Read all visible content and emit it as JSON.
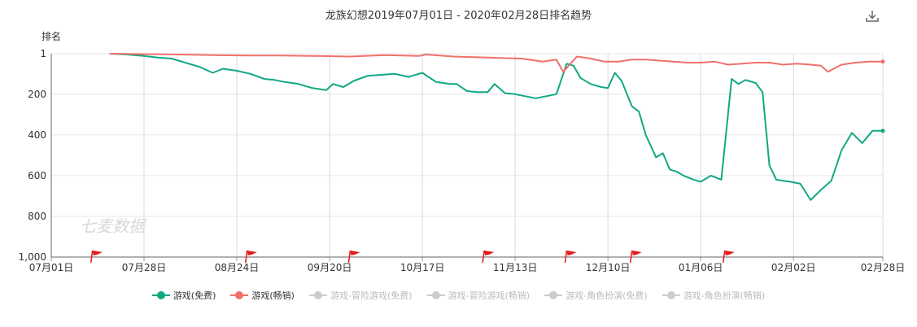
{
  "chart_data": {
    "type": "line",
    "title": "龙族幻想2019年07月01日 - 2020年02月28日排名趋势",
    "ylabel": "排名",
    "xlabel": "",
    "y_inverted": true,
    "ylim": [
      1,
      1000
    ],
    "yticks": [
      1,
      200,
      400,
      600,
      800,
      1000
    ],
    "ytick_labels": [
      "1",
      "200",
      "400",
      "600",
      "800",
      "1,000"
    ],
    "xlim": [
      "2019-07-01",
      "2020-02-28"
    ],
    "xticks": [
      "2019-07-01",
      "2019-07-28",
      "2019-08-24",
      "2019-09-20",
      "2019-10-17",
      "2019-11-13",
      "2019-12-10",
      "2020-01-06",
      "2020-02-02",
      "2020-02-28"
    ],
    "xtick_labels": [
      "07月01日",
      "07月28日",
      "08月24日",
      "09月20日",
      "10月17日",
      "11月13日",
      "12月10日",
      "01月06日",
      "02月02日",
      "02月28日"
    ],
    "grid": "vertical",
    "legend_position": "bottom",
    "event_flag_dates": [
      "2019-07-13",
      "2019-08-27",
      "2019-09-26",
      "2019-11-04",
      "2019-11-28",
      "2019-12-17",
      "2020-01-13"
    ],
    "series": [
      {
        "name": "游戏(免费)",
        "color": "#12a884",
        "visible": true,
        "x": [
          "2019-07-18",
          "2019-07-23",
          "2019-07-28",
          "2019-08-01",
          "2019-08-05",
          "2019-08-09",
          "2019-08-13",
          "2019-08-17",
          "2019-08-20",
          "2019-08-24",
          "2019-08-28",
          "2019-09-01",
          "2019-09-04",
          "2019-09-07",
          "2019-09-11",
          "2019-09-15",
          "2019-09-19",
          "2019-09-21",
          "2019-09-24",
          "2019-09-27",
          "2019-10-01",
          "2019-10-05",
          "2019-10-09",
          "2019-10-13",
          "2019-10-17",
          "2019-10-21",
          "2019-10-25",
          "2019-10-27",
          "2019-10-30",
          "2019-11-02",
          "2019-11-05",
          "2019-11-07",
          "2019-11-10",
          "2019-11-13",
          "2019-11-16",
          "2019-11-19",
          "2019-11-22",
          "2019-11-25",
          "2019-11-28",
          "2019-11-30",
          "2019-12-02",
          "2019-12-05",
          "2019-12-08",
          "2019-12-10",
          "2019-12-12",
          "2019-12-14",
          "2019-12-17",
          "2019-12-19",
          "2019-12-21",
          "2019-12-24",
          "2019-12-26",
          "2019-12-28",
          "2019-12-30",
          "2020-01-01",
          "2020-01-04",
          "2020-01-06",
          "2020-01-09",
          "2020-01-12",
          "2020-01-15",
          "2020-01-17",
          "2020-01-19",
          "2020-01-22",
          "2020-01-24",
          "2020-01-26",
          "2020-01-28",
          "2020-01-30",
          "2020-02-01",
          "2020-02-04",
          "2020-02-07",
          "2020-02-10",
          "2020-02-13",
          "2020-02-16",
          "2020-02-19",
          "2020-02-22",
          "2020-02-25",
          "2020-02-28"
        ],
        "y": [
          1,
          5,
          12,
          20,
          25,
          45,
          65,
          95,
          75,
          85,
          100,
          125,
          130,
          140,
          150,
          170,
          180,
          150,
          165,
          135,
          110,
          105,
          100,
          115,
          95,
          140,
          150,
          150,
          185,
          190,
          190,
          150,
          195,
          200,
          210,
          220,
          210,
          200,
          50,
          60,
          120,
          150,
          165,
          170,
          95,
          135,
          260,
          285,
          400,
          510,
          490,
          570,
          580,
          600,
          620,
          630,
          600,
          620,
          125,
          150,
          130,
          145,
          190,
          550,
          620,
          625,
          630,
          640,
          720,
          670,
          625,
          475,
          390,
          440,
          380,
          380
        ]
      },
      {
        "name": "游戏(畅销)",
        "color": "#f0706a",
        "visible": true,
        "x": [
          "2019-07-18",
          "2019-07-28",
          "2019-08-07",
          "2019-08-17",
          "2019-08-27",
          "2019-09-06",
          "2019-09-16",
          "2019-09-26",
          "2019-10-06",
          "2019-10-16",
          "2019-10-18",
          "2019-10-26",
          "2019-11-05",
          "2019-11-15",
          "2019-11-21",
          "2019-11-25",
          "2019-11-27",
          "2019-12-01",
          "2019-12-05",
          "2019-12-09",
          "2019-12-13",
          "2019-12-17",
          "2019-12-21",
          "2019-12-25",
          "2019-12-29",
          "2020-01-02",
          "2020-01-06",
          "2020-01-10",
          "2020-01-14",
          "2020-01-18",
          "2020-01-22",
          "2020-01-26",
          "2020-01-30",
          "2020-02-03",
          "2020-02-07",
          "2020-02-10",
          "2020-02-12",
          "2020-02-16",
          "2020-02-20",
          "2020-02-24",
          "2020-02-28"
        ],
        "y": [
          1,
          3,
          5,
          8,
          10,
          10,
          12,
          15,
          8,
          12,
          5,
          15,
          20,
          25,
          40,
          30,
          90,
          15,
          25,
          40,
          40,
          30,
          30,
          35,
          40,
          45,
          45,
          40,
          55,
          50,
          45,
          45,
          55,
          50,
          55,
          60,
          90,
          55,
          45,
          40,
          40
        ]
      },
      {
        "name": "游戏-冒险游戏(免费)",
        "color": "#cccccc",
        "visible": false
      },
      {
        "name": "游戏-冒险游戏(畅销)",
        "color": "#cccccc",
        "visible": false
      },
      {
        "name": "游戏-角色扮演(免费)",
        "color": "#cccccc",
        "visible": false
      },
      {
        "name": "游戏-角色扮演(畅销)",
        "color": "#cccccc",
        "visible": false
      }
    ]
  },
  "toolbar": {
    "download_icon": "download-icon"
  },
  "watermark": {
    "text": "七麦数据"
  }
}
